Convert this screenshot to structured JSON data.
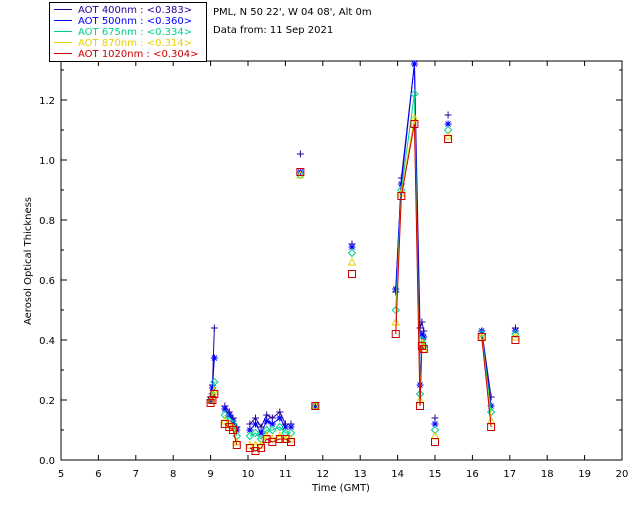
{
  "header": {
    "site": "PML, N 50 22', W 04 08', Alt 0m",
    "date": "Data from: 11 Sep 2021"
  },
  "legend": [
    {
      "label": "AOT  400nm : <0.383>",
      "color": "#2a0099"
    },
    {
      "label": "AOT  500nm : <0.360>",
      "color": "#0000ff"
    },
    {
      "label": "AOT  675nm : <0.334>",
      "color": "#00d08a"
    },
    {
      "label": "AOT  870nm : <0.314>",
      "color": "#e8d000"
    },
    {
      "label": "AOT 1020nm : <0.304>",
      "color": "#cc0000"
    }
  ],
  "chart_data": {
    "type": "scatter",
    "xlabel": "Time (GMT)",
    "ylabel": "Aerosol Optical Thickness",
    "xlim": [
      5,
      20
    ],
    "ylim": [
      0.0,
      1.33
    ],
    "xticks": [
      5,
      6,
      7,
      8,
      9,
      10,
      11,
      12,
      13,
      14,
      15,
      16,
      17,
      18,
      19,
      20
    ],
    "yticks": [
      "0.0",
      "0.2",
      "0.4",
      "0.6",
      "0.8",
      "1.0",
      "1.2"
    ],
    "grid": false,
    "legend_position": "top-left, outside",
    "x": [
      9.0,
      9.05,
      9.1,
      9.38,
      9.5,
      9.6,
      9.7,
      10.05,
      10.2,
      10.35,
      10.5,
      10.65,
      10.85,
      11.0,
      11.15,
      11.4,
      11.8,
      12.78,
      13.95,
      14.1,
      14.45,
      14.6,
      14.65,
      14.7,
      15.0,
      15.35,
      16.25,
      16.5,
      17.15
    ],
    "series": [
      {
        "name": "AOT  400nm : <0.383>",
        "marker": "plus",
        "values": [
          0.21,
          0.25,
          0.44,
          0.18,
          0.16,
          0.14,
          0.11,
          0.12,
          0.14,
          0.11,
          0.15,
          0.14,
          0.16,
          0.12,
          0.12,
          1.02,
          0.18,
          0.72,
          0.56,
          0.94,
          1.32,
          0.44,
          0.46,
          0.43,
          0.14,
          1.15,
          0.43,
          0.21,
          0.44
        ]
      },
      {
        "name": "AOT  500nm : <0.360>",
        "marker": "asterisk",
        "values": [
          0.2,
          0.24,
          0.34,
          0.17,
          0.15,
          0.13,
          0.1,
          0.1,
          0.12,
          0.09,
          0.13,
          0.12,
          0.14,
          0.11,
          0.11,
          0.96,
          0.18,
          0.71,
          0.57,
          0.92,
          1.32,
          0.25,
          0.42,
          0.41,
          0.12,
          1.12,
          0.43,
          0.18,
          0.43
        ]
      },
      {
        "name": "AOT  675nm : <0.334>",
        "marker": "diamond",
        "values": [
          0.2,
          0.22,
          0.26,
          0.15,
          0.13,
          0.12,
          0.08,
          0.08,
          0.09,
          0.07,
          0.1,
          0.1,
          0.11,
          0.09,
          0.09,
          0.95,
          0.18,
          0.69,
          0.5,
          0.9,
          1.22,
          0.22,
          0.4,
          0.38,
          0.1,
          1.1,
          0.42,
          0.16,
          0.42
        ]
      },
      {
        "name": "AOT  870nm : <0.314>",
        "marker": "triangle",
        "values": [
          0.2,
          0.21,
          0.23,
          0.13,
          0.12,
          0.11,
          0.06,
          0.05,
          0.05,
          0.05,
          0.08,
          0.07,
          0.08,
          0.07,
          0.07,
          0.95,
          0.18,
          0.66,
          0.46,
          0.89,
          1.14,
          0.2,
          0.39,
          0.37,
          0.08,
          1.08,
          0.41,
          0.13,
          0.41
        ]
      },
      {
        "name": "AOT 1020nm : <0.304>",
        "marker": "square",
        "values": [
          0.19,
          0.2,
          0.22,
          0.12,
          0.11,
          0.1,
          0.05,
          0.04,
          0.03,
          0.04,
          0.07,
          0.06,
          0.07,
          0.07,
          0.06,
          0.96,
          0.18,
          0.62,
          0.42,
          0.88,
          1.12,
          0.18,
          0.38,
          0.37,
          0.06,
          1.07,
          0.41,
          0.11,
          0.4
        ]
      }
    ]
  }
}
